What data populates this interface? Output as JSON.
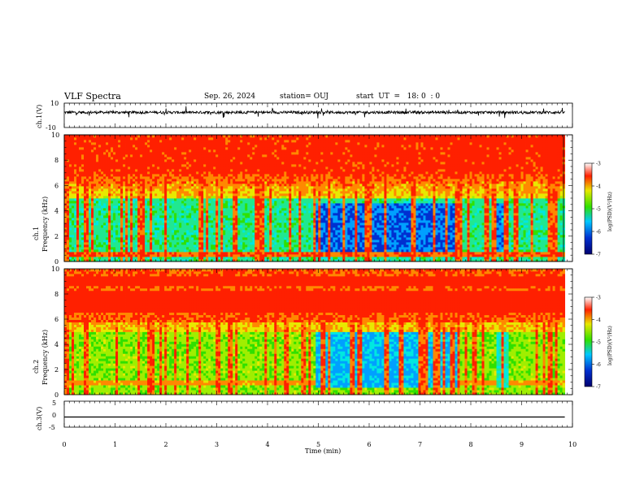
{
  "header": {
    "title": "VLF Spectra",
    "date": "Sep. 26, 2024",
    "station": "station= OUJ",
    "start": "start  UT  =   18: 0  : 0"
  },
  "chart_data": [
    {
      "type": "line",
      "name": "ch1-waveform",
      "ylabel": "ch.1(V)",
      "ylim": [
        -10,
        10
      ],
      "yticks": [
        "10",
        "-10"
      ],
      "x": [
        0,
        9.85
      ],
      "y": [
        2.4,
        2.4
      ]
    },
    {
      "type": "heatmap",
      "name": "ch1-spectrogram",
      "ylabel": "ch.1\nFrequency (kHz)",
      "ylim": [
        0,
        10
      ],
      "yticks": [
        "0",
        "2",
        "4",
        "6",
        "8",
        "10"
      ],
      "colorbar": {
        "label": "log(PSD)(V²/Hz)",
        "range": [
          -7,
          -3
        ],
        "ticks": [
          "-3",
          "-4",
          "-5",
          "-6",
          "-7"
        ]
      }
    },
    {
      "type": "heatmap",
      "name": "ch2-spectrogram",
      "ylabel": "ch.2\nFrequency (kHz)",
      "ylim": [
        0,
        10
      ],
      "yticks": [
        "0",
        "2",
        "4",
        "6",
        "8",
        "10"
      ],
      "colorbar": {
        "label": "log(PSD)(V²/Hz)",
        "range": [
          -7,
          -3
        ],
        "ticks": [
          "-3",
          "-4",
          "-5",
          "-6",
          "-7"
        ]
      }
    },
    {
      "type": "line",
      "name": "ch3-waveform",
      "ylabel": "ch.3(V)",
      "ylim": [
        -5,
        5
      ],
      "yticks": [
        "5",
        "0",
        "-5"
      ],
      "x": [
        0,
        9.85
      ],
      "y": [
        -1.1,
        -1.1
      ]
    }
  ],
  "xaxis": {
    "label": "Time (min)",
    "range": [
      0,
      10
    ],
    "ticks": [
      "0",
      "1",
      "2",
      "3",
      "4",
      "5",
      "6",
      "7",
      "8",
      "9",
      "10"
    ]
  },
  "colors": {
    "red": "#ff2000",
    "yellow": "#e8e800",
    "green": "#30e000",
    "cyan": "#00e8e0",
    "blue": "#0030d0",
    "navy": "#000070"
  }
}
